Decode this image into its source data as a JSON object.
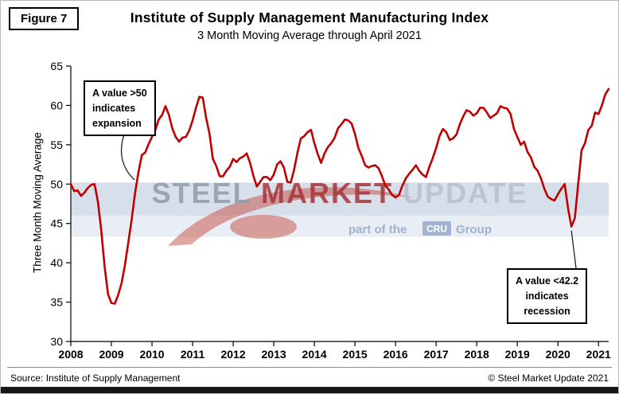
{
  "header": {
    "figure_label": "Figure 7",
    "title": "Institute of Supply Management Manufacturing Index",
    "subtitle": "3 Month Moving Average through April 2021"
  },
  "annotations": {
    "expansion": "A value >50\nindicates\nexpansion",
    "recession": "A value <42.2\nindicates\nrecession"
  },
  "watermark": {
    "words": [
      "STEEL",
      "MARKET",
      "UPDATE"
    ],
    "tagline_prefix": "part of the",
    "tagline_box": "CRU",
    "tagline_suffix": "Group"
  },
  "footer": {
    "source": "Source: Institute of Supply Management",
    "copyright": "© Steel Market Update 2021"
  },
  "colors": {
    "line": "#C00000",
    "band": "#AFC0D8",
    "steel": "#8E9CAB",
    "market": "#A63439",
    "update": "#B8C1CB",
    "tagline": "#9AAECD",
    "swoosh": "#C23B2F"
  },
  "chart_data": {
    "type": "line",
    "title": "Institute of Supply Management Manufacturing Index",
    "subtitle": "3 Month Moving Average through April 2021",
    "ylabel": "Three Month Moving Average",
    "xlabel": "",
    "ylim": [
      30,
      65
    ],
    "ytick_step": 5,
    "x_start_month": "2008-01",
    "x_end_month": "2021-04",
    "x_tick_years": [
      2008,
      2009,
      2010,
      2011,
      2012,
      2013,
      2014,
      2015,
      2016,
      2017,
      2018,
      2019,
      2020,
      2021
    ],
    "grid": false,
    "legend": "none",
    "series": [
      {
        "name": "ISM Manufacturing Index, 3-month moving average",
        "color": "#C00000",
        "values": [
          50.0,
          49.1,
          49.2,
          48.5,
          48.9,
          49.5,
          49.9,
          50.0,
          47.8,
          44.1,
          39.5,
          36.0,
          34.9,
          34.8,
          35.9,
          37.4,
          39.7,
          42.6,
          45.5,
          48.9,
          51.5,
          53.7,
          54.0,
          55.1,
          56.0,
          56.9,
          58.2,
          58.8,
          59.9,
          58.8,
          57.1,
          56.0,
          55.4,
          55.9,
          56.0,
          56.8,
          58.1,
          59.7,
          61.1,
          61.0,
          58.4,
          56.4,
          53.2,
          52.3,
          51.0,
          51.0,
          51.7,
          52.2,
          53.2,
          52.8,
          53.3,
          53.5,
          53.9,
          52.7,
          51.0,
          49.7,
          50.3,
          50.9,
          50.9,
          50.5,
          51.2,
          52.5,
          52.9,
          52.1,
          50.3,
          50.2,
          51.8,
          54.0,
          55.8,
          56.1,
          56.6,
          56.9,
          55.2,
          53.8,
          52.7,
          53.9,
          54.7,
          55.2,
          55.9,
          57.1,
          57.6,
          58.2,
          58.1,
          57.7,
          56.4,
          54.6,
          53.6,
          52.4,
          52.1,
          52.3,
          52.4,
          52.0,
          51.0,
          49.8,
          49.3,
          48.6,
          48.3,
          48.6,
          49.8,
          50.7,
          51.3,
          51.8,
          52.4,
          51.7,
          51.2,
          50.9,
          52.2,
          53.3,
          54.6,
          56.1,
          57.0,
          56.6,
          55.6,
          55.8,
          56.3,
          57.6,
          58.6,
          59.4,
          59.2,
          58.7,
          59.0,
          59.7,
          59.7,
          59.1,
          58.4,
          58.7,
          59.0,
          59.9,
          59.7,
          59.6,
          58.9,
          57.0,
          56.0,
          55.0,
          55.4,
          54.1,
          53.4,
          52.2,
          51.7,
          50.7,
          49.4,
          48.4,
          48.1,
          47.9,
          48.7,
          49.4,
          50.0,
          46.9,
          44.6,
          45.7,
          50.0,
          54.3,
          55.2,
          56.9,
          57.4,
          59.1,
          58.9,
          60.0,
          61.4,
          62.1
        ]
      }
    ],
    "annotations": [
      {
        "text": "A value >50 indicates expansion",
        "points_to": "the line crossing 50 in mid-2009"
      },
      {
        "text": "A value <42.2 indicates recession",
        "points_to": "the 2020 trough (~44.6)"
      }
    ]
  }
}
